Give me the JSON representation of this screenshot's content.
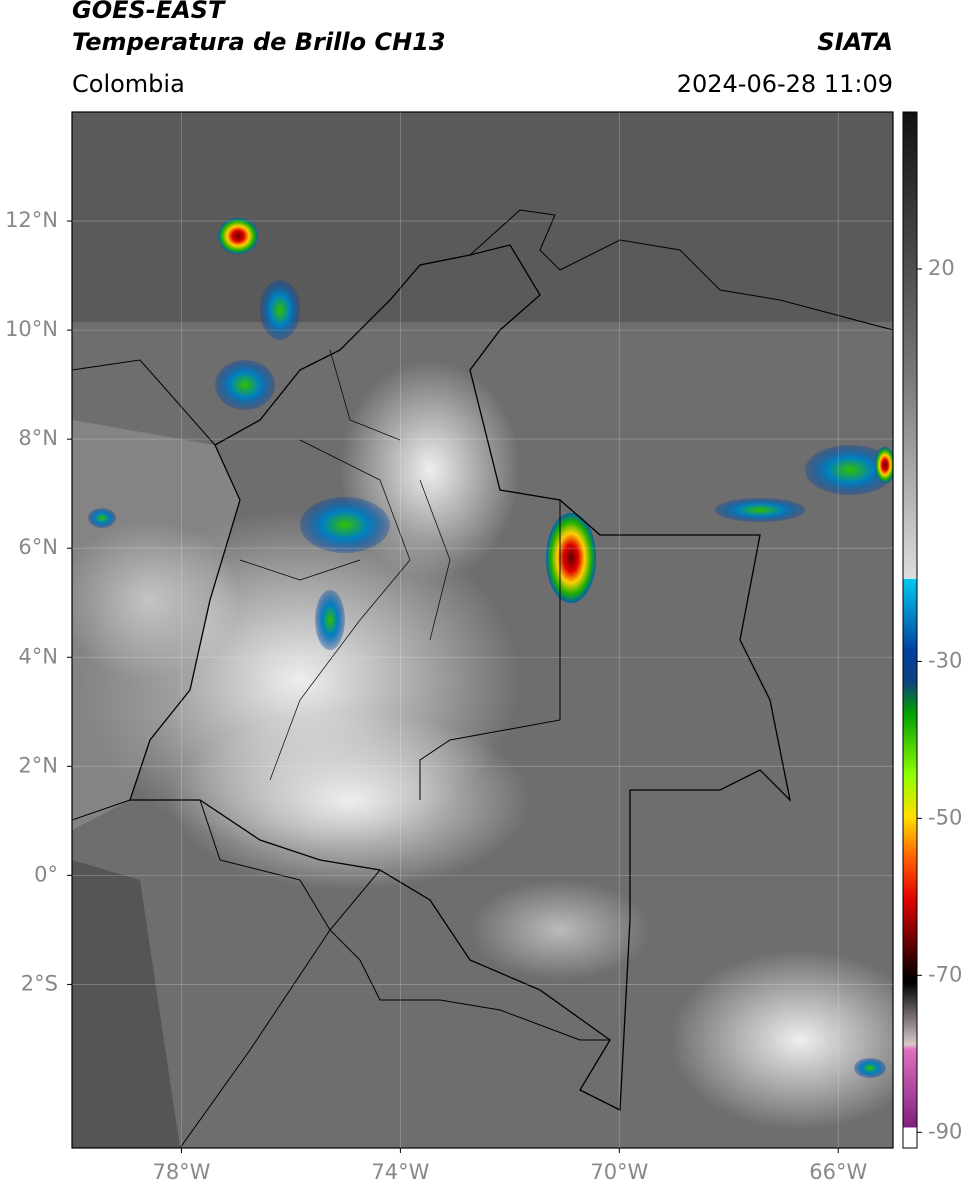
{
  "header": {
    "title": "GOES-EAST",
    "subtitle": "Temperatura de Brillo CH13",
    "source": "SIATA",
    "region": "Colombia",
    "timestamp": "2024-06-28 11:09"
  },
  "map": {
    "xlim": [
      -80,
      -65
    ],
    "ylim": [
      -5,
      14
    ],
    "xticks": [
      {
        "value": -78,
        "label": "78°W"
      },
      {
        "value": -74,
        "label": "74°W"
      },
      {
        "value": -70,
        "label": "70°W"
      },
      {
        "value": -66,
        "label": "66°W"
      }
    ],
    "yticks": [
      {
        "value": 12,
        "label": "12°N"
      },
      {
        "value": 10,
        "label": "10°N"
      },
      {
        "value": 8,
        "label": "8°N"
      },
      {
        "value": 6,
        "label": "6°N"
      },
      {
        "value": 4,
        "label": "4°N"
      },
      {
        "value": 2,
        "label": "2°N"
      },
      {
        "value": 0,
        "label": "0°"
      },
      {
        "value": -2,
        "label": "2°S"
      }
    ],
    "grid": true
  },
  "colorbar": {
    "lim": [
      -92,
      40
    ],
    "ticks": [
      20,
      -30,
      -50,
      -70,
      -90
    ]
  }
}
